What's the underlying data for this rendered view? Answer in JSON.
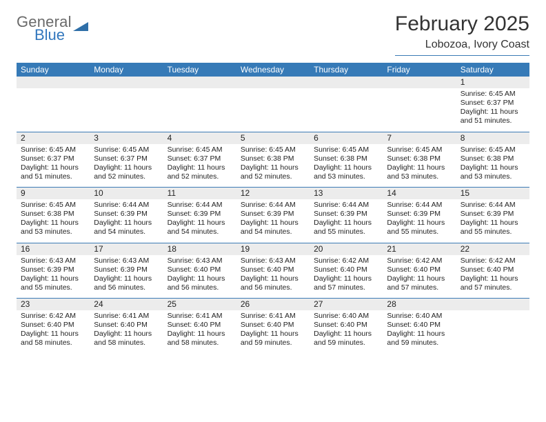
{
  "logo": {
    "line1": "General",
    "line2": "Blue",
    "color_general": "#6a6a6a",
    "color_blue": "#3277bd",
    "mark_color": "#2f6fa8"
  },
  "header": {
    "month_title": "February 2025",
    "location": "Lobozoa, Ivory Coast"
  },
  "colors": {
    "header_band": "#367ab7",
    "rule": "#3a7ab5",
    "daynum_bg": "#ececec",
    "text": "#222222",
    "background": "#ffffff"
  },
  "fonts": {
    "month_title_pt": 30,
    "location_pt": 16,
    "dow_pt": 12,
    "daynum_pt": 12,
    "detail_pt": 10.5
  },
  "days_of_week": [
    "Sunday",
    "Monday",
    "Tuesday",
    "Wednesday",
    "Thursday",
    "Friday",
    "Saturday"
  ],
  "weeks": [
    [
      {
        "n": "",
        "sunrise": "",
        "sunset": "",
        "daylight": ""
      },
      {
        "n": "",
        "sunrise": "",
        "sunset": "",
        "daylight": ""
      },
      {
        "n": "",
        "sunrise": "",
        "sunset": "",
        "daylight": ""
      },
      {
        "n": "",
        "sunrise": "",
        "sunset": "",
        "daylight": ""
      },
      {
        "n": "",
        "sunrise": "",
        "sunset": "",
        "daylight": ""
      },
      {
        "n": "",
        "sunrise": "",
        "sunset": "",
        "daylight": ""
      },
      {
        "n": "1",
        "sunrise": "Sunrise: 6:45 AM",
        "sunset": "Sunset: 6:37 PM",
        "daylight": "Daylight: 11 hours and 51 minutes."
      }
    ],
    [
      {
        "n": "2",
        "sunrise": "Sunrise: 6:45 AM",
        "sunset": "Sunset: 6:37 PM",
        "daylight": "Daylight: 11 hours and 51 minutes."
      },
      {
        "n": "3",
        "sunrise": "Sunrise: 6:45 AM",
        "sunset": "Sunset: 6:37 PM",
        "daylight": "Daylight: 11 hours and 52 minutes."
      },
      {
        "n": "4",
        "sunrise": "Sunrise: 6:45 AM",
        "sunset": "Sunset: 6:37 PM",
        "daylight": "Daylight: 11 hours and 52 minutes."
      },
      {
        "n": "5",
        "sunrise": "Sunrise: 6:45 AM",
        "sunset": "Sunset: 6:38 PM",
        "daylight": "Daylight: 11 hours and 52 minutes."
      },
      {
        "n": "6",
        "sunrise": "Sunrise: 6:45 AM",
        "sunset": "Sunset: 6:38 PM",
        "daylight": "Daylight: 11 hours and 53 minutes."
      },
      {
        "n": "7",
        "sunrise": "Sunrise: 6:45 AM",
        "sunset": "Sunset: 6:38 PM",
        "daylight": "Daylight: 11 hours and 53 minutes."
      },
      {
        "n": "8",
        "sunrise": "Sunrise: 6:45 AM",
        "sunset": "Sunset: 6:38 PM",
        "daylight": "Daylight: 11 hours and 53 minutes."
      }
    ],
    [
      {
        "n": "9",
        "sunrise": "Sunrise: 6:45 AM",
        "sunset": "Sunset: 6:38 PM",
        "daylight": "Daylight: 11 hours and 53 minutes."
      },
      {
        "n": "10",
        "sunrise": "Sunrise: 6:44 AM",
        "sunset": "Sunset: 6:39 PM",
        "daylight": "Daylight: 11 hours and 54 minutes."
      },
      {
        "n": "11",
        "sunrise": "Sunrise: 6:44 AM",
        "sunset": "Sunset: 6:39 PM",
        "daylight": "Daylight: 11 hours and 54 minutes."
      },
      {
        "n": "12",
        "sunrise": "Sunrise: 6:44 AM",
        "sunset": "Sunset: 6:39 PM",
        "daylight": "Daylight: 11 hours and 54 minutes."
      },
      {
        "n": "13",
        "sunrise": "Sunrise: 6:44 AM",
        "sunset": "Sunset: 6:39 PM",
        "daylight": "Daylight: 11 hours and 55 minutes."
      },
      {
        "n": "14",
        "sunrise": "Sunrise: 6:44 AM",
        "sunset": "Sunset: 6:39 PM",
        "daylight": "Daylight: 11 hours and 55 minutes."
      },
      {
        "n": "15",
        "sunrise": "Sunrise: 6:44 AM",
        "sunset": "Sunset: 6:39 PM",
        "daylight": "Daylight: 11 hours and 55 minutes."
      }
    ],
    [
      {
        "n": "16",
        "sunrise": "Sunrise: 6:43 AM",
        "sunset": "Sunset: 6:39 PM",
        "daylight": "Daylight: 11 hours and 55 minutes."
      },
      {
        "n": "17",
        "sunrise": "Sunrise: 6:43 AM",
        "sunset": "Sunset: 6:39 PM",
        "daylight": "Daylight: 11 hours and 56 minutes."
      },
      {
        "n": "18",
        "sunrise": "Sunrise: 6:43 AM",
        "sunset": "Sunset: 6:40 PM",
        "daylight": "Daylight: 11 hours and 56 minutes."
      },
      {
        "n": "19",
        "sunrise": "Sunrise: 6:43 AM",
        "sunset": "Sunset: 6:40 PM",
        "daylight": "Daylight: 11 hours and 56 minutes."
      },
      {
        "n": "20",
        "sunrise": "Sunrise: 6:42 AM",
        "sunset": "Sunset: 6:40 PM",
        "daylight": "Daylight: 11 hours and 57 minutes."
      },
      {
        "n": "21",
        "sunrise": "Sunrise: 6:42 AM",
        "sunset": "Sunset: 6:40 PM",
        "daylight": "Daylight: 11 hours and 57 minutes."
      },
      {
        "n": "22",
        "sunrise": "Sunrise: 6:42 AM",
        "sunset": "Sunset: 6:40 PM",
        "daylight": "Daylight: 11 hours and 57 minutes."
      }
    ],
    [
      {
        "n": "23",
        "sunrise": "Sunrise: 6:42 AM",
        "sunset": "Sunset: 6:40 PM",
        "daylight": "Daylight: 11 hours and 58 minutes."
      },
      {
        "n": "24",
        "sunrise": "Sunrise: 6:41 AM",
        "sunset": "Sunset: 6:40 PM",
        "daylight": "Daylight: 11 hours and 58 minutes."
      },
      {
        "n": "25",
        "sunrise": "Sunrise: 6:41 AM",
        "sunset": "Sunset: 6:40 PM",
        "daylight": "Daylight: 11 hours and 58 minutes."
      },
      {
        "n": "26",
        "sunrise": "Sunrise: 6:41 AM",
        "sunset": "Sunset: 6:40 PM",
        "daylight": "Daylight: 11 hours and 59 minutes."
      },
      {
        "n": "27",
        "sunrise": "Sunrise: 6:40 AM",
        "sunset": "Sunset: 6:40 PM",
        "daylight": "Daylight: 11 hours and 59 minutes."
      },
      {
        "n": "28",
        "sunrise": "Sunrise: 6:40 AM",
        "sunset": "Sunset: 6:40 PM",
        "daylight": "Daylight: 11 hours and 59 minutes."
      },
      {
        "n": "",
        "sunrise": "",
        "sunset": "",
        "daylight": ""
      }
    ]
  ]
}
